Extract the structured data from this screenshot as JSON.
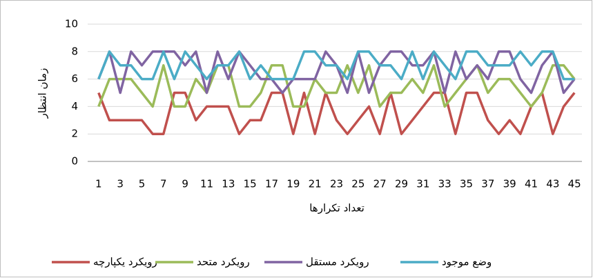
{
  "chart_data": {
    "type": "line",
    "y_label": "زمان انتظار",
    "x_label": "تعداد تکرارها",
    "categories": [
      1,
      null,
      3,
      null,
      5,
      null,
      7,
      null,
      9,
      null,
      11,
      null,
      13,
      null,
      15,
      null,
      17,
      null,
      19,
      null,
      21,
      null,
      23,
      null,
      25,
      null,
      27,
      null,
      29,
      null,
      31,
      null,
      33,
      null,
      35,
      null,
      37,
      null,
      39,
      null,
      41,
      null,
      43,
      null,
      45
    ],
    "ylim": [
      0,
      10
    ],
    "yticks": [
      0,
      2,
      4,
      6,
      8,
      10
    ],
    "grid": true,
    "legend": "bottom",
    "series": [
      {
        "name": "رویکرد یکپارچه",
        "color": "#c0504d",
        "values": [
          5,
          3,
          3,
          3,
          3,
          2,
          2,
          5,
          5,
          3,
          4,
          4,
          4,
          2,
          3,
          3,
          5,
          5,
          2,
          5,
          2,
          5,
          3,
          2,
          3,
          4,
          2,
          5,
          2,
          3,
          4,
          5,
          5,
          2,
          5,
          5,
          3,
          2,
          3,
          2,
          4,
          5,
          2,
          4,
          5
        ]
      },
      {
        "name": "رویکرد متحد",
        "color": "#9bbb59",
        "values": [
          4,
          6,
          6,
          6,
          5,
          4,
          7,
          4,
          4,
          6,
          5,
          7,
          7,
          4,
          4,
          5,
          7,
          7,
          4,
          4,
          6,
          5,
          5,
          7,
          5,
          7,
          4,
          5,
          5,
          6,
          5,
          7,
          4,
          5,
          6,
          7,
          5,
          6,
          6,
          5,
          4,
          5,
          7,
          7,
          6
        ]
      },
      {
        "name": "رویکرد مستقل",
        "color": "#8064a2",
        "values": [
          6,
          8,
          5,
          8,
          7,
          8,
          8,
          8,
          7,
          8,
          5,
          8,
          6,
          8,
          7,
          6,
          6,
          5,
          6,
          6,
          6,
          8,
          7,
          5,
          8,
          5,
          7,
          8,
          8,
          7,
          7,
          8,
          5,
          8,
          6,
          7,
          6,
          8,
          8,
          6,
          5,
          7,
          8,
          5,
          6
        ]
      },
      {
        "name": "وضع موجود",
        "color": "#4bacc6",
        "values": [
          6,
          8,
          7,
          7,
          6,
          6,
          8,
          6,
          8,
          7,
          6,
          7,
          7,
          8,
          6,
          7,
          6,
          6,
          6,
          8,
          8,
          7,
          7,
          6,
          8,
          8,
          7,
          7,
          6,
          8,
          6,
          8,
          7,
          6,
          8,
          8,
          7,
          7,
          7,
          8,
          7,
          8,
          8,
          6,
          6
        ]
      }
    ]
  }
}
